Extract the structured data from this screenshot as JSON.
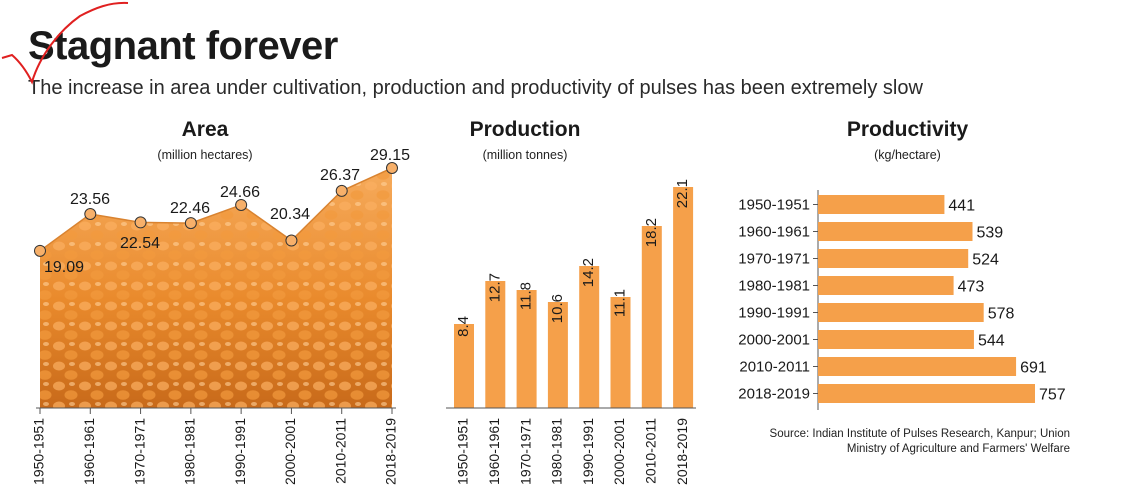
{
  "header": {
    "title": "Stagnant forever",
    "subtitle": "The increase in area under cultivation, production and productivity of pulses has been extremely slow"
  },
  "colors": {
    "bar": "#f5a04a",
    "area_fill": "#f4a24f",
    "marker": "#f7b06a",
    "ink": "#333333",
    "red_mark": "#e02020"
  },
  "source": "Source: Indian Institute of Pulses Research, Kanpur; Union Ministry of Agriculture and Farmers' Welfare",
  "chart_data": [
    {
      "type": "area",
      "title": "Area",
      "unit": "(million hectares)",
      "categories": [
        "1950-1951",
        "1960-1961",
        "1970-1971",
        "1980-1981",
        "1990-1991",
        "2000-2001",
        "2010-2011",
        "2018-2019"
      ],
      "values": [
        19.09,
        23.56,
        22.54,
        22.46,
        24.66,
        20.34,
        26.37,
        29.15
      ],
      "labels": [
        "19.09",
        "23.56",
        "22.54",
        "22.46",
        "24.66",
        "20.34",
        "26.37",
        "29.15"
      ],
      "background": "photo of split orange lentils filling the area under the line"
    },
    {
      "type": "bar",
      "title": "Production",
      "unit": "(million tonnes)",
      "categories": [
        "1950-1951",
        "1960-1961",
        "1970-1971",
        "1980-1981",
        "1990-1991",
        "2000-2001",
        "2010-2011",
        "2018-2019"
      ],
      "values": [
        8.4,
        12.7,
        11.8,
        10.6,
        14.2,
        11.1,
        18.2,
        22.1
      ],
      "labels": [
        "8.4",
        "12.7",
        "11.8",
        "10.6",
        "14.2",
        "11.1",
        "18.2",
        "22.1"
      ]
    },
    {
      "type": "bar",
      "orientation": "horizontal",
      "title": "Productivity",
      "unit": "(kg/hectare)",
      "categories": [
        "1950-1951",
        "1960-1961",
        "1970-1971",
        "1980-1981",
        "1990-1991",
        "2000-2001",
        "2010-2011",
        "2018-2019"
      ],
      "values": [
        441,
        539,
        524,
        473,
        578,
        544,
        691,
        757
      ],
      "labels": [
        "441",
        "539",
        "524",
        "473",
        "578",
        "544",
        "691",
        "757"
      ]
    }
  ]
}
